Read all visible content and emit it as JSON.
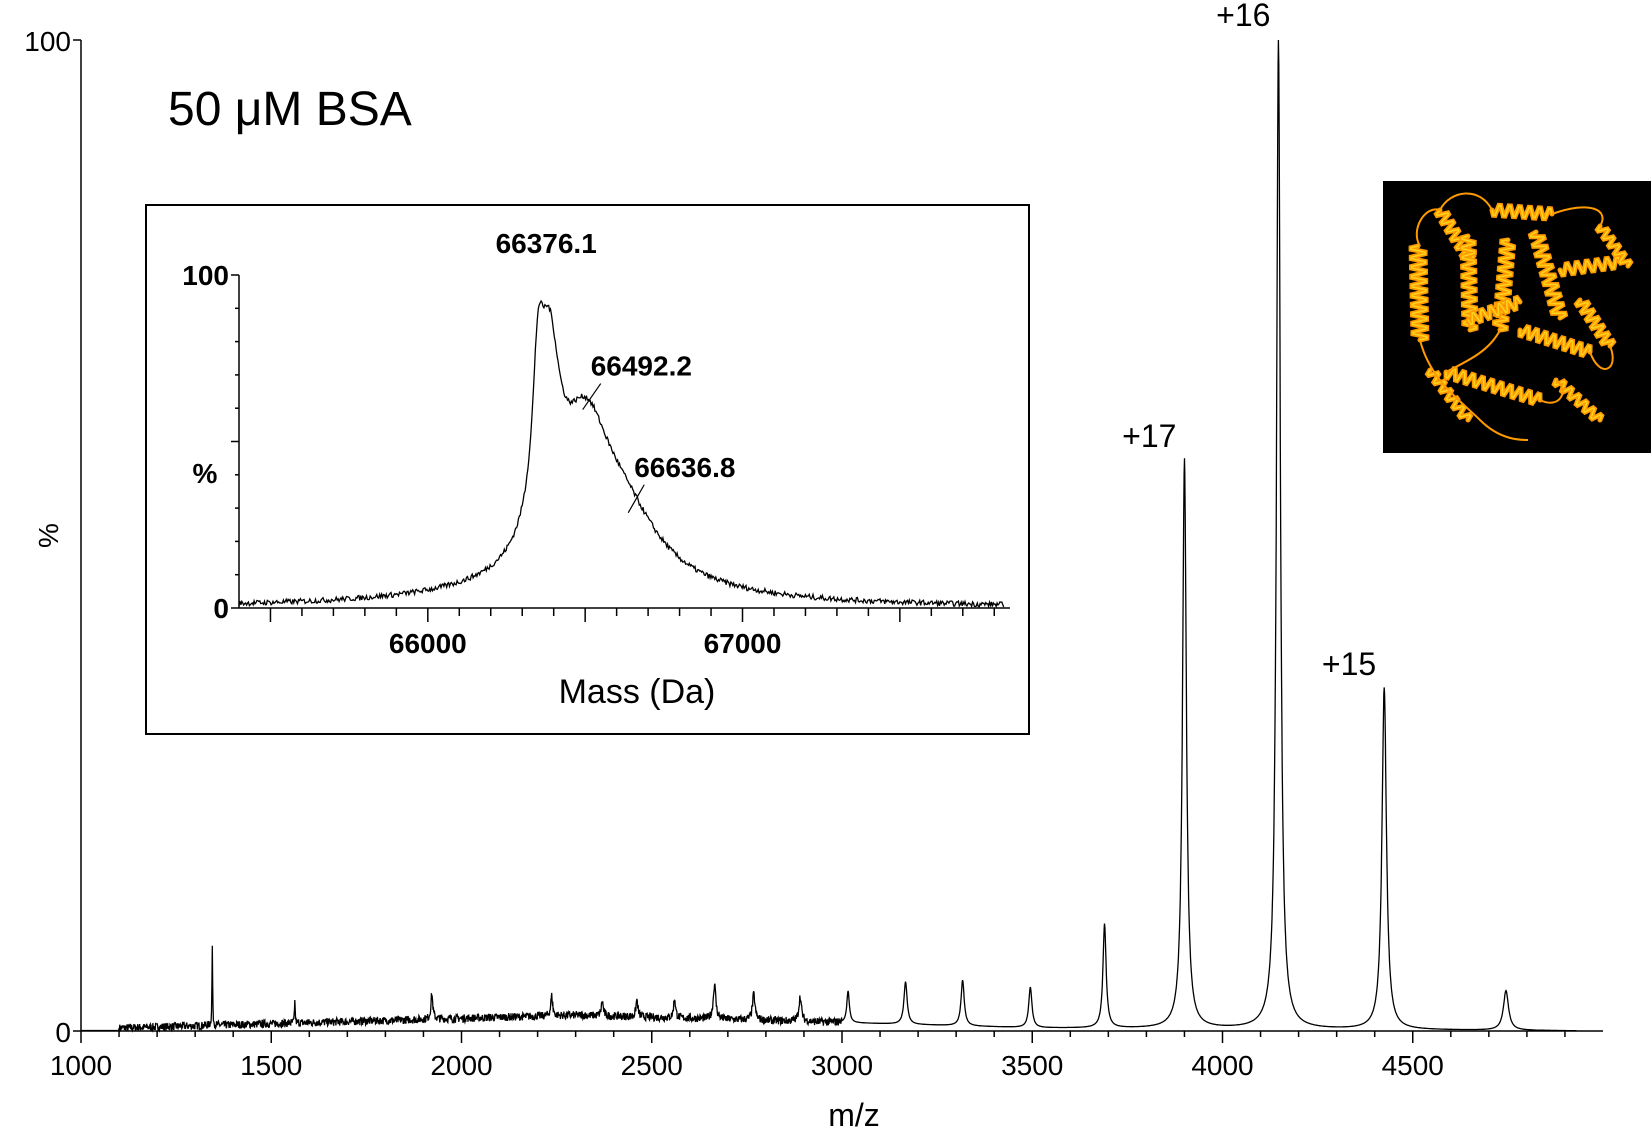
{
  "annotations": {
    "sample_label": "50 μM BSA",
    "charge_states": [
      "+17",
      "+16",
      "+15"
    ]
  },
  "colors": {
    "trace": "#000000",
    "protein_image_background": "#000000",
    "protein_ribbon": "#ff9a00",
    "protein_ribbon_highlight": "#ffd21a"
  },
  "chart_data": [
    {
      "type": "line",
      "title": "",
      "xlabel": "m/z",
      "ylabel": "%",
      "xlim": [
        1000,
        5000
      ],
      "ylim": [
        0,
        100
      ],
      "x_ticks": [
        1000,
        1500,
        2000,
        2500,
        3000,
        3500,
        4000,
        4500
      ],
      "y_ticks": [
        0,
        100
      ],
      "grid": false,
      "peaks": [
        {
          "x": 1345,
          "y": 8,
          "width": 1
        },
        {
          "x": 1562,
          "y": 2.5,
          "width": 1
        },
        {
          "x": 1922,
          "y": 2.5,
          "width": 3
        },
        {
          "x": 2237,
          "y": 2.0,
          "width": 3
        },
        {
          "x": 2370,
          "y": 1.5,
          "width": 3
        },
        {
          "x": 2461,
          "y": 1.7,
          "width": 3
        },
        {
          "x": 2560,
          "y": 2.0,
          "width": 3
        },
        {
          "x": 2665,
          "y": 3.5,
          "width": 4
        },
        {
          "x": 2768,
          "y": 2.6,
          "width": 4
        },
        {
          "x": 2890,
          "y": 2.5,
          "width": 4
        },
        {
          "x": 3016,
          "y": 3.2,
          "width": 4
        },
        {
          "x": 3167,
          "y": 4.3,
          "width": 5
        },
        {
          "x": 3317,
          "y": 4.6,
          "width": 5
        },
        {
          "x": 3495,
          "y": 4.1,
          "width": 5
        },
        {
          "x": 3690,
          "y": 10.5,
          "width": 5
        },
        {
          "x": 3900,
          "y": 57.5,
          "width": 6
        },
        {
          "x": 4147,
          "y": 100,
          "width": 6
        },
        {
          "x": 4425,
          "y": 34.5,
          "width": 7
        },
        {
          "x": 4745,
          "y": 4.0,
          "width": 8
        }
      ],
      "peak_labels": [
        {
          "label": "+17",
          "x": 3900,
          "y": 57.5
        },
        {
          "label": "+16",
          "x": 4147,
          "y": 100
        },
        {
          "label": "+15",
          "x": 4425,
          "y": 34.5
        }
      ]
    },
    {
      "type": "line",
      "title": "",
      "xlabel": "Mass (Da)",
      "ylabel": "%",
      "xlim": [
        65400,
        67850
      ],
      "ylim": [
        0,
        100
      ],
      "x_ticks": [
        66000,
        67000
      ],
      "y_ticks": [
        0,
        100
      ],
      "grid": false,
      "peak_annotations": [
        {
          "label": "66376.1",
          "x": 66376.1,
          "y": 100
        },
        {
          "label": "66492.2",
          "x": 66492.2,
          "y": 59
        },
        {
          "label": "66636.8",
          "x": 66636.8,
          "y": 28
        }
      ]
    }
  ]
}
